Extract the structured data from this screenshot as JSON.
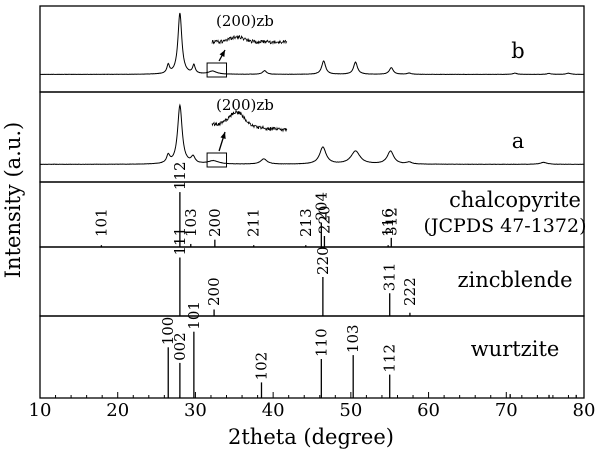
{
  "chart_data": {
    "type": "line",
    "xlabel": "2theta (degree)",
    "ylabel": "Intensity (a.u.)",
    "xlim": [
      10,
      80
    ],
    "xticks": [
      10,
      20,
      30,
      40,
      50,
      60,
      70,
      80
    ],
    "grid": false,
    "panels": [
      {
        "id": "b",
        "label": "b",
        "kind": "pattern",
        "peaks": [
          {
            "x": 26.5,
            "h": 0.14,
            "w": 0.2
          },
          {
            "x": 28.0,
            "h": 1.0,
            "w": 0.3
          },
          {
            "x": 29.8,
            "h": 0.14,
            "w": 0.2
          },
          {
            "x": 32.2,
            "h": 0.05,
            "w": 0.6
          },
          {
            "x": 38.9,
            "h": 0.06,
            "w": 0.3
          },
          {
            "x": 46.5,
            "h": 0.22,
            "w": 0.3
          },
          {
            "x": 50.6,
            "h": 0.2,
            "w": 0.3
          },
          {
            "x": 55.2,
            "h": 0.11,
            "w": 0.3
          },
          {
            "x": 57.5,
            "h": 0.02,
            "w": 0.3
          },
          {
            "x": 71.1,
            "h": 0.02,
            "w": 0.3
          },
          {
            "x": 75.5,
            "h": 0.015,
            "w": 0.3
          },
          {
            "x": 78.0,
            "h": 0.02,
            "w": 0.3
          }
        ],
        "inset_label": "(200)zb",
        "zoom_box_x": [
          31.5,
          34.0
        ]
      },
      {
        "id": "a",
        "label": "a",
        "kind": "pattern",
        "peaks": [
          {
            "x": 26.5,
            "h": 0.12,
            "w": 0.25
          },
          {
            "x": 28.0,
            "h": 0.9,
            "w": 0.35
          },
          {
            "x": 29.7,
            "h": 0.1,
            "w": 0.3
          },
          {
            "x": 32.3,
            "h": 0.05,
            "w": 0.8
          },
          {
            "x": 38.8,
            "h": 0.08,
            "w": 0.5
          },
          {
            "x": 46.4,
            "h": 0.26,
            "w": 0.5
          },
          {
            "x": 50.6,
            "h": 0.2,
            "w": 0.7
          },
          {
            "x": 55.1,
            "h": 0.2,
            "w": 0.5
          },
          {
            "x": 57.5,
            "h": 0.03,
            "w": 0.4
          },
          {
            "x": 74.8,
            "h": 0.03,
            "w": 0.5
          }
        ],
        "inset_label": "(200)zb",
        "zoom_box_x": [
          31.5,
          34.0
        ]
      },
      {
        "id": "chalcopyrite",
        "title": "chalcopyrite",
        "subtitle": "(JCPDS 47-1372)",
        "kind": "reference",
        "lines": [
          {
            "x": 17.9,
            "h": 0.03,
            "hkl": "101"
          },
          {
            "x": 28.0,
            "h": 0.9,
            "hkl": "112"
          },
          {
            "x": 29.4,
            "h": 0.05,
            "hkl": "103"
          },
          {
            "x": 32.5,
            "h": 0.12,
            "hkl": "200"
          },
          {
            "x": 37.5,
            "h": 0.03,
            "hkl": "211"
          },
          {
            "x": 44.2,
            "h": 0.03,
            "hkl": "213"
          },
          {
            "x": 46.2,
            "h": 0.4,
            "hkl": "204"
          },
          {
            "x": 46.6,
            "h": 0.18,
            "hkl": "220"
          },
          {
            "x": 54.8,
            "h": 0.03,
            "hkl": "116"
          },
          {
            "x": 55.2,
            "h": 0.15,
            "hkl": "312"
          }
        ]
      },
      {
        "id": "zincblende",
        "title": "zincblende",
        "kind": "reference",
        "lines": [
          {
            "x": 28.0,
            "h": 0.9,
            "hkl": "111"
          },
          {
            "x": 32.4,
            "h": 0.1,
            "hkl": "200"
          },
          {
            "x": 46.4,
            "h": 0.6,
            "hkl": "220"
          },
          {
            "x": 55.0,
            "h": 0.35,
            "hkl": "311"
          },
          {
            "x": 57.6,
            "h": 0.05,
            "hkl": "222"
          }
        ]
      },
      {
        "id": "wurtzite",
        "title": "wurtzite",
        "kind": "reference",
        "lines": [
          {
            "x": 26.5,
            "h": 0.65,
            "hkl": "100"
          },
          {
            "x": 28.0,
            "h": 0.45,
            "hkl": "002"
          },
          {
            "x": 29.8,
            "h": 0.85,
            "hkl": "101"
          },
          {
            "x": 38.5,
            "h": 0.2,
            "hkl": "102"
          },
          {
            "x": 46.2,
            "h": 0.5,
            "hkl": "110"
          },
          {
            "x": 50.3,
            "h": 0.55,
            "hkl": "103"
          },
          {
            "x": 55.0,
            "h": 0.3,
            "hkl": "112"
          },
          {
            "x": 70.5,
            "h": 0.05,
            "hkl": ""
          },
          {
            "x": 75.5,
            "h": 0.04,
            "hkl": ""
          },
          {
            "x": 79.0,
            "h": 0.04,
            "hkl": ""
          }
        ]
      }
    ]
  }
}
